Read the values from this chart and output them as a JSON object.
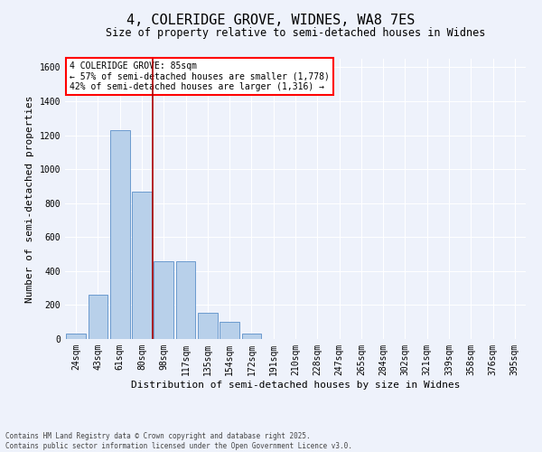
{
  "title": "4, COLERIDGE GROVE, WIDNES, WA8 7ES",
  "subtitle": "Size of property relative to semi-detached houses in Widnes",
  "xlabel": "Distribution of semi-detached houses by size in Widnes",
  "ylabel": "Number of semi-detached properties",
  "categories": [
    "24sqm",
    "43sqm",
    "61sqm",
    "80sqm",
    "98sqm",
    "117sqm",
    "135sqm",
    "154sqm",
    "172sqm",
    "191sqm",
    "210sqm",
    "228sqm",
    "247sqm",
    "265sqm",
    "284sqm",
    "302sqm",
    "321sqm",
    "339sqm",
    "358sqm",
    "376sqm",
    "395sqm"
  ],
  "values": [
    30,
    260,
    1230,
    870,
    460,
    460,
    155,
    100,
    30,
    0,
    0,
    0,
    0,
    0,
    0,
    0,
    0,
    0,
    0,
    0,
    0
  ],
  "bar_color": "#b8d0ea",
  "bar_edge_color": "#5b8fc9",
  "vline_color": "#aa0000",
  "annotation_text": "4 COLERIDGE GROVE: 85sqm\n← 57% of semi-detached houses are smaller (1,778)\n42% of semi-detached houses are larger (1,316) →",
  "annotation_box_color": "white",
  "annotation_box_edge_color": "red",
  "ylim": [
    0,
    1650
  ],
  "yticks": [
    0,
    200,
    400,
    600,
    800,
    1000,
    1200,
    1400,
    1600
  ],
  "footer": "Contains HM Land Registry data © Crown copyright and database right 2025.\nContains public sector information licensed under the Open Government Licence v3.0.",
  "bg_color": "#eef2fb",
  "grid_color": "white",
  "title_fontsize": 11,
  "subtitle_fontsize": 8.5,
  "tick_fontsize": 7,
  "label_fontsize": 8,
  "footer_fontsize": 5.5
}
